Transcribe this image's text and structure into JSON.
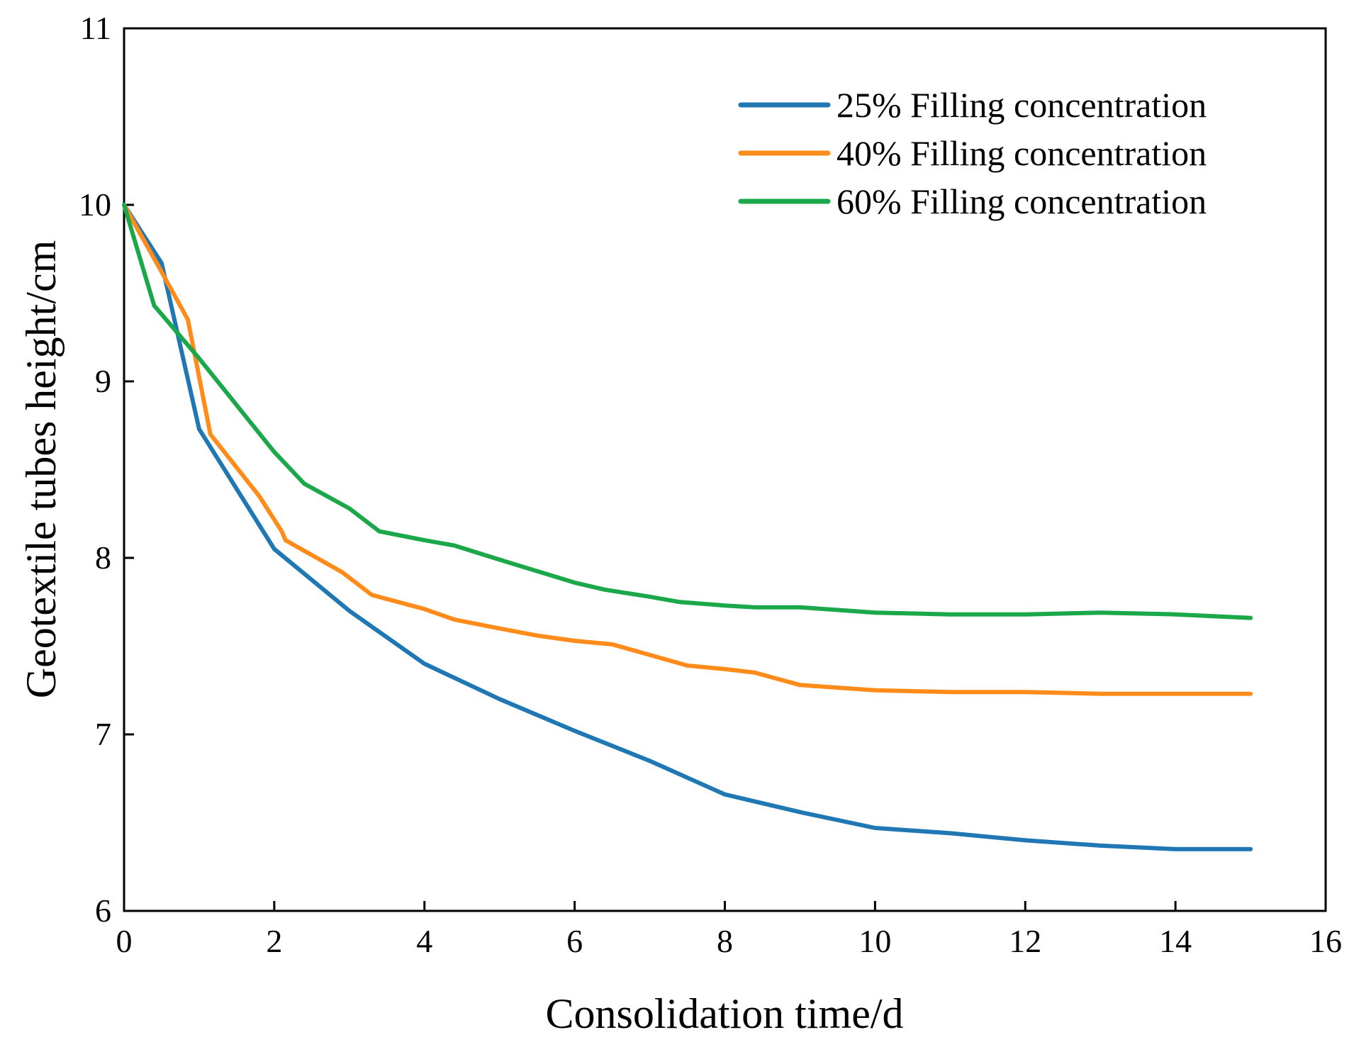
{
  "chart_data": {
    "type": "line",
    "title": "",
    "xlabel": "Consolidation time/d",
    "ylabel": "Geotextile tubes height/cm",
    "xlim": [
      0,
      16
    ],
    "ylim": [
      6,
      11
    ],
    "xticks": [
      0,
      2,
      4,
      6,
      8,
      10,
      12,
      14,
      16
    ],
    "yticks": [
      6,
      7,
      8,
      9,
      10,
      11
    ],
    "xtick_labels": [
      "0",
      "2",
      "4",
      "6",
      "8",
      "10",
      "12",
      "14",
      "16"
    ],
    "ytick_labels": [
      "6",
      "7",
      "8",
      "9",
      "10",
      "11"
    ],
    "grid": false,
    "legend_position": "top-right",
    "series": [
      {
        "name": "25% Filling concentration",
        "color": "#1f77b4",
        "x": [
          0,
          0.5,
          1.0,
          2.0,
          3.0,
          4.0,
          5.0,
          6.0,
          7.0,
          8.0,
          9.0,
          10.0,
          11.0,
          12.0,
          13.0,
          14.0,
          15.0
        ],
        "y": [
          10.0,
          9.67,
          8.73,
          8.05,
          7.7,
          7.4,
          7.2,
          7.02,
          6.85,
          6.66,
          6.56,
          6.47,
          6.44,
          6.4,
          6.37,
          6.35,
          6.35
        ]
      },
      {
        "name": "40% Filling concentration",
        "color": "#ff8c1a",
        "x": [
          0,
          0.5,
          0.85,
          1.15,
          1.8,
          2.1,
          2.15,
          2.9,
          3.3,
          4.0,
          4.4,
          5.0,
          5.5,
          6.0,
          6.5,
          7.0,
          7.5,
          8.0,
          8.4,
          9.0,
          10.0,
          11.0,
          12.0,
          13.0,
          14.0,
          15.0
        ],
        "y": [
          10.0,
          9.62,
          9.35,
          8.7,
          8.35,
          8.15,
          8.1,
          7.92,
          7.79,
          7.71,
          7.65,
          7.6,
          7.56,
          7.53,
          7.51,
          7.45,
          7.39,
          7.37,
          7.35,
          7.28,
          7.25,
          7.24,
          7.24,
          7.23,
          7.23,
          7.23
        ]
      },
      {
        "name": "60% Filling concentration",
        "color": "#1aa84a",
        "x": [
          0,
          0.4,
          1.0,
          2.0,
          2.4,
          3.0,
          3.4,
          4.0,
          4.4,
          5.0,
          6.0,
          6.4,
          7.0,
          7.4,
          8.0,
          8.4,
          9.0,
          10.0,
          11.0,
          12.0,
          13.0,
          14.0,
          15.0
        ],
        "y": [
          10.0,
          9.43,
          9.13,
          8.6,
          8.42,
          8.28,
          8.15,
          8.1,
          8.07,
          7.99,
          7.86,
          7.82,
          7.78,
          7.75,
          7.73,
          7.72,
          7.72,
          7.69,
          7.68,
          7.68,
          7.69,
          7.68,
          7.66
        ]
      }
    ]
  }
}
